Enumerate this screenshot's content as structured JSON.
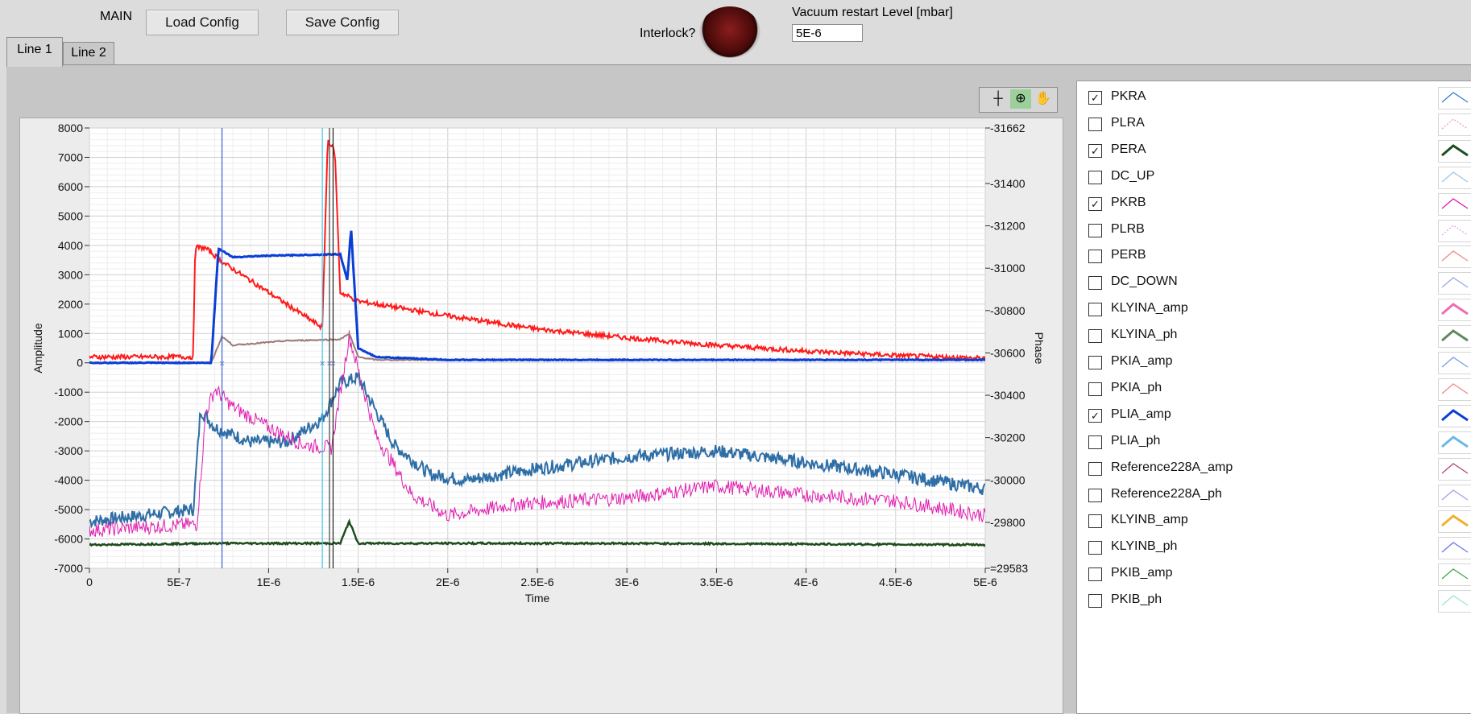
{
  "header": {
    "main_label": "MAIN",
    "load_config": "Load Config",
    "save_config": "Save Config",
    "interlock_label": "Interlock?",
    "vacuum_label": "Vacuum restart Level [mbar]",
    "vacuum_value": "5E-6"
  },
  "tabs": [
    {
      "label": "Line 1",
      "active": true
    },
    {
      "label": "Line 2",
      "active": false
    }
  ],
  "colors": {
    "PKRA": "#ff1a1a",
    "PERA": "#1d4d1d",
    "PKRB": "#e01eb0",
    "PLIA_amp": "#0a3ed6",
    "trace_steel": "#2e6ea6",
    "trace_brown": "#9a7a7a"
  },
  "legend": [
    {
      "label": "PKRA",
      "checked": true,
      "color": "#3a7fd6",
      "style": "solid"
    },
    {
      "label": "PLRA",
      "checked": false,
      "color": "#f0a0a0",
      "style": "dotted"
    },
    {
      "label": "PERA",
      "checked": true,
      "color": "#1d4d1d",
      "style": "bold"
    },
    {
      "label": "DC_UP",
      "checked": false,
      "color": "#9cc9ee",
      "style": "solid"
    },
    {
      "label": "PKRB",
      "checked": true,
      "color": "#e01eb0",
      "style": "solid"
    },
    {
      "label": "PLRB",
      "checked": false,
      "color": "#e6a6e6",
      "style": "dotted"
    },
    {
      "label": "PERB",
      "checked": false,
      "color": "#ee8a8a",
      "style": "solid"
    },
    {
      "label": "DC_DOWN",
      "checked": false,
      "color": "#9aa6ee",
      "style": "solid"
    },
    {
      "label": "KLYINA_amp",
      "checked": false,
      "color": "#f06ab4",
      "style": "bold"
    },
    {
      "label": "KLYINA_ph",
      "checked": false,
      "color": "#5e8a5e",
      "style": "bold"
    },
    {
      "label": "PKIA_amp",
      "checked": false,
      "color": "#7a9ee6",
      "style": "solid"
    },
    {
      "label": "PKIA_ph",
      "checked": false,
      "color": "#ee8a8a",
      "style": "solid"
    },
    {
      "label": "PLIA_amp",
      "checked": true,
      "color": "#0a3ed6",
      "style": "bold"
    },
    {
      "label": "PLIA_ph",
      "checked": false,
      "color": "#6ab8ea",
      "style": "bold"
    },
    {
      "label": "Reference228A_amp",
      "checked": false,
      "color": "#b04a7a",
      "style": "solid"
    },
    {
      "label": "Reference228A_ph",
      "checked": false,
      "color": "#b69ae6",
      "style": "solid"
    },
    {
      "label": "KLYINB_amp",
      "checked": false,
      "color": "#f0b030",
      "style": "bold"
    },
    {
      "label": "KLYINB_ph",
      "checked": false,
      "color": "#6a7ae6",
      "style": "solid"
    },
    {
      "label": "PKIB_amp",
      "checked": false,
      "color": "#4aa64a",
      "style": "solid"
    },
    {
      "label": "PKIB_ph",
      "checked": false,
      "color": "#9ae6d6",
      "style": "solid"
    }
  ],
  "chart_data": {
    "type": "line",
    "xlabel": "Time",
    "ylabel": "Amplitude",
    "y2label": "Phase",
    "xlim": [
      0,
      5e-06
    ],
    "ylim": [
      -7000,
      8000
    ],
    "y2_ticks": [
      "31662",
      "31400",
      "31200",
      "31000",
      "30800",
      "30600",
      "30400",
      "30200",
      "30000",
      "29800",
      "29583"
    ],
    "y2_tick_values": [
      31662,
      31400,
      31200,
      31000,
      30800,
      30600,
      30400,
      30200,
      30000,
      29800,
      29583
    ],
    "y2_display": [
      "-31662",
      "-31400",
      "-31200",
      "-31000",
      "-30800",
      "-30600",
      "-30400",
      "-30200",
      "-30000",
      "-29800",
      "=29583"
    ],
    "x_ticks": [
      0,
      5e-07,
      1e-06,
      1.5e-06,
      2e-06,
      2.5e-06,
      3e-06,
      3.5e-06,
      4e-06,
      4.5e-06,
      5e-06
    ],
    "x_tick_labels": [
      "0",
      "5E-7",
      "1E-6",
      "1.5E-6",
      "2E-6",
      "2.5E-6",
      "3E-6",
      "3.5E-6",
      "4E-6",
      "4.5E-6",
      "5E-6"
    ],
    "y_ticks": [
      8000,
      7000,
      6000,
      5000,
      4000,
      3000,
      2000,
      1000,
      0,
      -1000,
      -2000,
      -3000,
      -4000,
      -5000,
      -6000,
      -7000
    ],
    "grid": true,
    "cursors": [
      7.4e-07,
      1.3e-06,
      1.34e-06,
      1.36e-06
    ],
    "series": [
      {
        "name": "PKRA",
        "key": "PKRA",
        "points": [
          [
            0,
            200
          ],
          [
            5.8e-07,
            200
          ],
          [
            5.9e-07,
            3950
          ],
          [
            6.5e-07,
            3900
          ],
          [
            7.5e-07,
            3400
          ],
          [
            9e-07,
            2800
          ],
          [
            1.1e-06,
            2000
          ],
          [
            1.3e-06,
            1200
          ],
          [
            1.33e-06,
            7600
          ],
          [
            1.37e-06,
            7200
          ],
          [
            1.4e-06,
            2400
          ],
          [
            1.5e-06,
            2100
          ],
          [
            2e-06,
            1600
          ],
          [
            2.5e-06,
            1150
          ],
          [
            3e-06,
            850
          ],
          [
            3.5e-06,
            600
          ],
          [
            4e-06,
            400
          ],
          [
            4.5e-06,
            250
          ],
          [
            5e-06,
            150
          ]
        ]
      },
      {
        "name": "PERA",
        "key": "PERA",
        "points": [
          [
            0,
            -6200
          ],
          [
            7e-07,
            -6150
          ],
          [
            1.4e-06,
            -6150
          ],
          [
            1.45e-06,
            -5400
          ],
          [
            1.5e-06,
            -6150
          ],
          [
            3e-06,
            -6150
          ],
          [
            5e-06,
            -6200
          ]
        ]
      },
      {
        "name": "PKRB",
        "key": "PKRB",
        "points": [
          [
            0,
            -5700
          ],
          [
            6e-07,
            -5500
          ],
          [
            6.5e-07,
            -1700
          ],
          [
            7e-07,
            -900
          ],
          [
            8e-07,
            -1500
          ],
          [
            1e-06,
            -2200
          ],
          [
            1.2e-06,
            -2800
          ],
          [
            1.35e-06,
            -2900
          ],
          [
            1.45e-06,
            900
          ],
          [
            1.6e-06,
            -2500
          ],
          [
            1.8e-06,
            -4500
          ],
          [
            2e-06,
            -5200
          ],
          [
            2.4e-06,
            -4800
          ],
          [
            3e-06,
            -4600
          ],
          [
            3.5e-06,
            -4200
          ],
          [
            4e-06,
            -4500
          ],
          [
            4.5e-06,
            -4700
          ],
          [
            5e-06,
            -5200
          ]
        ]
      },
      {
        "name": "PLIA_amp",
        "key": "PLIA_amp",
        "points": [
          [
            0,
            0
          ],
          [
            6.8e-07,
            0
          ],
          [
            7.2e-07,
            3900
          ],
          [
            8e-07,
            3600
          ],
          [
            1e-06,
            3650
          ],
          [
            1.4e-06,
            3700
          ],
          [
            1.44e-06,
            2800
          ],
          [
            1.46e-06,
            4600
          ],
          [
            1.5e-06,
            500
          ],
          [
            1.6e-06,
            200
          ],
          [
            2e-06,
            100
          ],
          [
            3e-06,
            100
          ],
          [
            5e-06,
            100
          ]
        ]
      },
      {
        "name": "",
        "key": "trace_steel",
        "points": [
          [
            0,
            -5400
          ],
          [
            5.8e-07,
            -5000
          ],
          [
            6.2e-07,
            -1600
          ],
          [
            7e-07,
            -2200
          ],
          [
            9e-07,
            -2700
          ],
          [
            1.1e-06,
            -2700
          ],
          [
            1.3e-06,
            -1900
          ],
          [
            1.4e-06,
            -700
          ],
          [
            1.5e-06,
            -500
          ],
          [
            1.7e-06,
            -2800
          ],
          [
            1.9e-06,
            -3800
          ],
          [
            2.1e-06,
            -4000
          ],
          [
            2.5e-06,
            -3600
          ],
          [
            3e-06,
            -3200
          ],
          [
            3.5e-06,
            -3000
          ],
          [
            4e-06,
            -3400
          ],
          [
            4.5e-06,
            -3800
          ],
          [
            5e-06,
            -4300
          ]
        ]
      },
      {
        "name": "",
        "key": "trace_brown",
        "points": [
          [
            0,
            0
          ],
          [
            6.8e-07,
            0
          ],
          [
            7.4e-07,
            900
          ],
          [
            8e-07,
            600
          ],
          [
            1.1e-06,
            750
          ],
          [
            1.4e-06,
            800
          ],
          [
            1.45e-06,
            1000
          ],
          [
            1.5e-06,
            200
          ],
          [
            1.6e-06,
            100
          ],
          [
            5e-06,
            100
          ]
        ]
      }
    ]
  }
}
